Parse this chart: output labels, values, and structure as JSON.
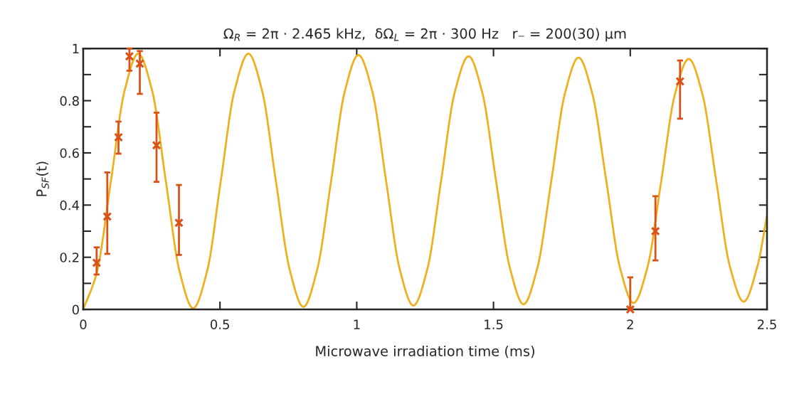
{
  "chart_data": {
    "type": "line",
    "title": "Ω$_{R}$ = 2π · 2.465 kHz,  δΩ$_{L}$ = 2π · 300 Hz   r₋ = 200(30) μm",
    "xlabel": "Microwave irradiation time (ms)",
    "ylabel": "P$_{SF}$(t)",
    "xlim": [
      0,
      2.5
    ],
    "xticks": [
      0,
      0.5,
      1,
      1.5,
      2,
      2.5
    ],
    "ylim": [
      0,
      1
    ],
    "yticks": [
      0,
      0.2,
      0.4,
      0.6,
      0.8,
      1
    ],
    "grid": false,
    "legend": false,
    "series": [
      {
        "color": "#edb120",
        "marker": "none",
        "line_style": "solid",
        "x": [
          0,
          0.05,
          0.101,
          0.151,
          0.201,
          0.252,
          0.302,
          0.352,
          0.402,
          0.453,
          0.503,
          0.553,
          0.604,
          0.654,
          0.704,
          0.755,
          0.805,
          0.855,
          0.906,
          0.956,
          1.006,
          1.057,
          1.107,
          1.157,
          1.207,
          1.258,
          1.308,
          1.358,
          1.409,
          1.459,
          1.509,
          1.56,
          1.61,
          1.66,
          1.711,
          1.761,
          1.811,
          1.861,
          1.912,
          1.962,
          2.012,
          2.063,
          2.113,
          2.163,
          2.214,
          2.264,
          2.314,
          2.364,
          2.415,
          2.465,
          2.5
        ],
        "values": [
          0,
          0.143,
          0.49,
          0.837,
          0.98,
          0.838,
          0.493,
          0.147,
          0.005,
          0.147,
          0.493,
          0.838,
          0.98,
          0.838,
          0.495,
          0.152,
          0.01,
          0.151,
          0.49,
          0.834,
          0.975,
          0.835,
          0.495,
          0.155,
          0.015,
          0.154,
          0.49,
          0.831,
          0.97,
          0.831,
          0.495,
          0.159,
          0.02,
          0.158,
          0.49,
          0.827,
          0.965,
          0.828,
          0.495,
          0.162,
          0.025,
          0.162,
          0.49,
          0.823,
          0.96,
          0.824,
          0.495,
          0.166,
          0.03,
          0.166,
          0.36
        ]
      },
      {
        "type": "scatter",
        "color": "#d95319",
        "marker": "cross",
        "x": [
          0.049,
          0.088,
          0.129,
          0.169,
          0.207,
          0.268,
          0.35,
          2.0,
          2.092,
          2.182
        ],
        "values": [
          0.179,
          0.356,
          0.66,
          0.97,
          0.942,
          0.629,
          0.332,
          0.0,
          0.3,
          0.874
        ],
        "errors": [
          [
            0.134,
            0.238
          ],
          [
            0.213,
            0.525
          ],
          [
            0.597,
            0.72
          ],
          [
            0.915,
            1.0
          ],
          [
            0.826,
            0.99
          ],
          [
            0.489,
            0.754
          ],
          [
            0.209,
            0.477
          ],
          [
            0.0,
            0.123
          ],
          [
            0.188,
            0.434
          ],
          [
            0.731,
            0.954
          ]
        ]
      }
    ]
  }
}
